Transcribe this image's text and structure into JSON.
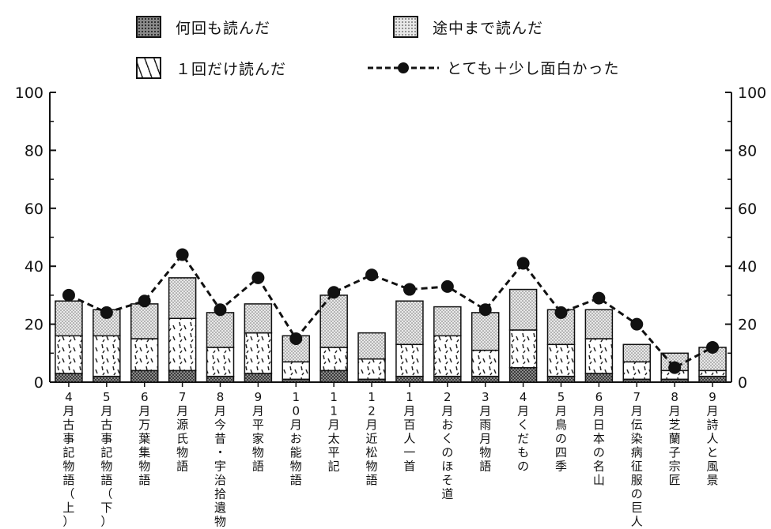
{
  "chart_data": {
    "type": "bar",
    "stacked": true,
    "categories": [
      "4月古事記物語（上）",
      "5月古事記物語（下）",
      "6月万葉集物語",
      "7月源氏物語",
      "8月今昔・宇治拾遺物語",
      "9月平家物語",
      "10月お能物語",
      "11月太平記",
      "12月近松物語",
      "1月百人一首",
      "2月おくのほそ道",
      "3月雨月物語",
      "4月くだもの",
      "5月鳥の四季",
      "6月日本の名山",
      "7月伝染病征服の巨人",
      "8月芝蘭子宗匠",
      "9月詩人と風景"
    ],
    "series": [
      {
        "name": "何回も読んだ",
        "color": "#555555",
        "pattern": "dark-dots",
        "values": [
          3,
          2,
          4,
          4,
          2,
          3,
          1,
          4,
          1,
          2,
          2,
          2,
          5,
          2,
          3,
          1,
          1,
          2
        ]
      },
      {
        "name": "１回だけ読んだ",
        "color": "#ffffff",
        "pattern": "dashes",
        "values": [
          13,
          14,
          11,
          18,
          10,
          14,
          6,
          8,
          7,
          11,
          14,
          9,
          13,
          11,
          12,
          6,
          3,
          2
        ]
      },
      {
        "name": "途中まで読んだ",
        "color": "#cccccc",
        "pattern": "light-dots",
        "values": [
          12,
          9,
          12,
          14,
          12,
          10,
          9,
          18,
          9,
          15,
          10,
          13,
          14,
          12,
          10,
          6,
          6,
          8
        ]
      }
    ],
    "line_series": {
      "name": "とても＋少し面白かった",
      "values": [
        30,
        24,
        28,
        44,
        25,
        36,
        15,
        31,
        37,
        32,
        33,
        25,
        41,
        24,
        29,
        20,
        5,
        12
      ]
    },
    "yticks": [
      "0",
      "20",
      "40",
      "60",
      "80",
      "100"
    ],
    "ylim": [
      0,
      100
    ],
    "legend_position": "top",
    "grid": false
  }
}
